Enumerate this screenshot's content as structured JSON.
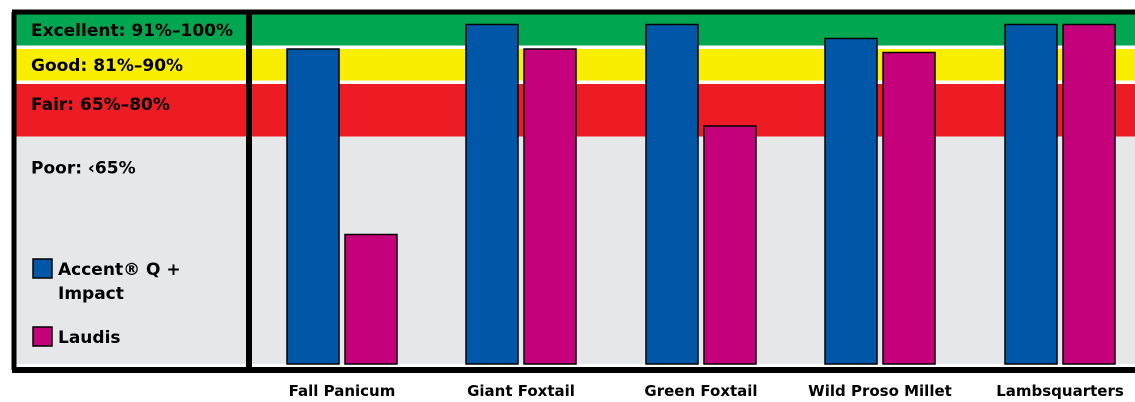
{
  "chart_data": {
    "type": "bar",
    "title": "",
    "xlabel": "",
    "ylabel": "",
    "ylim": [
      0,
      100
    ],
    "grid": false,
    "legend_placement": "left",
    "categories": [
      "Fall Panicum",
      "Giant Foxtail",
      "Green Foxtail",
      "Wild Proso Millet",
      "Lambsquarters"
    ],
    "series": [
      {
        "name": "Accent® Q + Impact",
        "values": [
          90,
          97,
          97,
          93,
          97
        ],
        "color": "#0057a8"
      },
      {
        "name": "Laudis",
        "values": [
          37,
          90,
          68,
          89,
          97
        ],
        "color": "#c4007a"
      }
    ],
    "bands": [
      {
        "label": "Excellent: 91%–100%",
        "min": 91,
        "max": 100,
        "color": "#00a650"
      },
      {
        "label": "Good: 81%–90%",
        "min": 81,
        "max": 90,
        "color": "#f9ed00"
      },
      {
        "label": "Fair: 65%–80%",
        "min": 65,
        "max": 80,
        "color": "#ed1c24"
      },
      {
        "label": "Poor: ‹65%",
        "min": 0,
        "max": 65,
        "color": "#e6e7e8"
      }
    ],
    "legend": [
      {
        "label_lines": [
          "Accent® Q +",
          "Impact"
        ],
        "color": "#0057a8"
      },
      {
        "label_lines": [
          "Laudis"
        ],
        "color": "#c4007a"
      }
    ]
  }
}
